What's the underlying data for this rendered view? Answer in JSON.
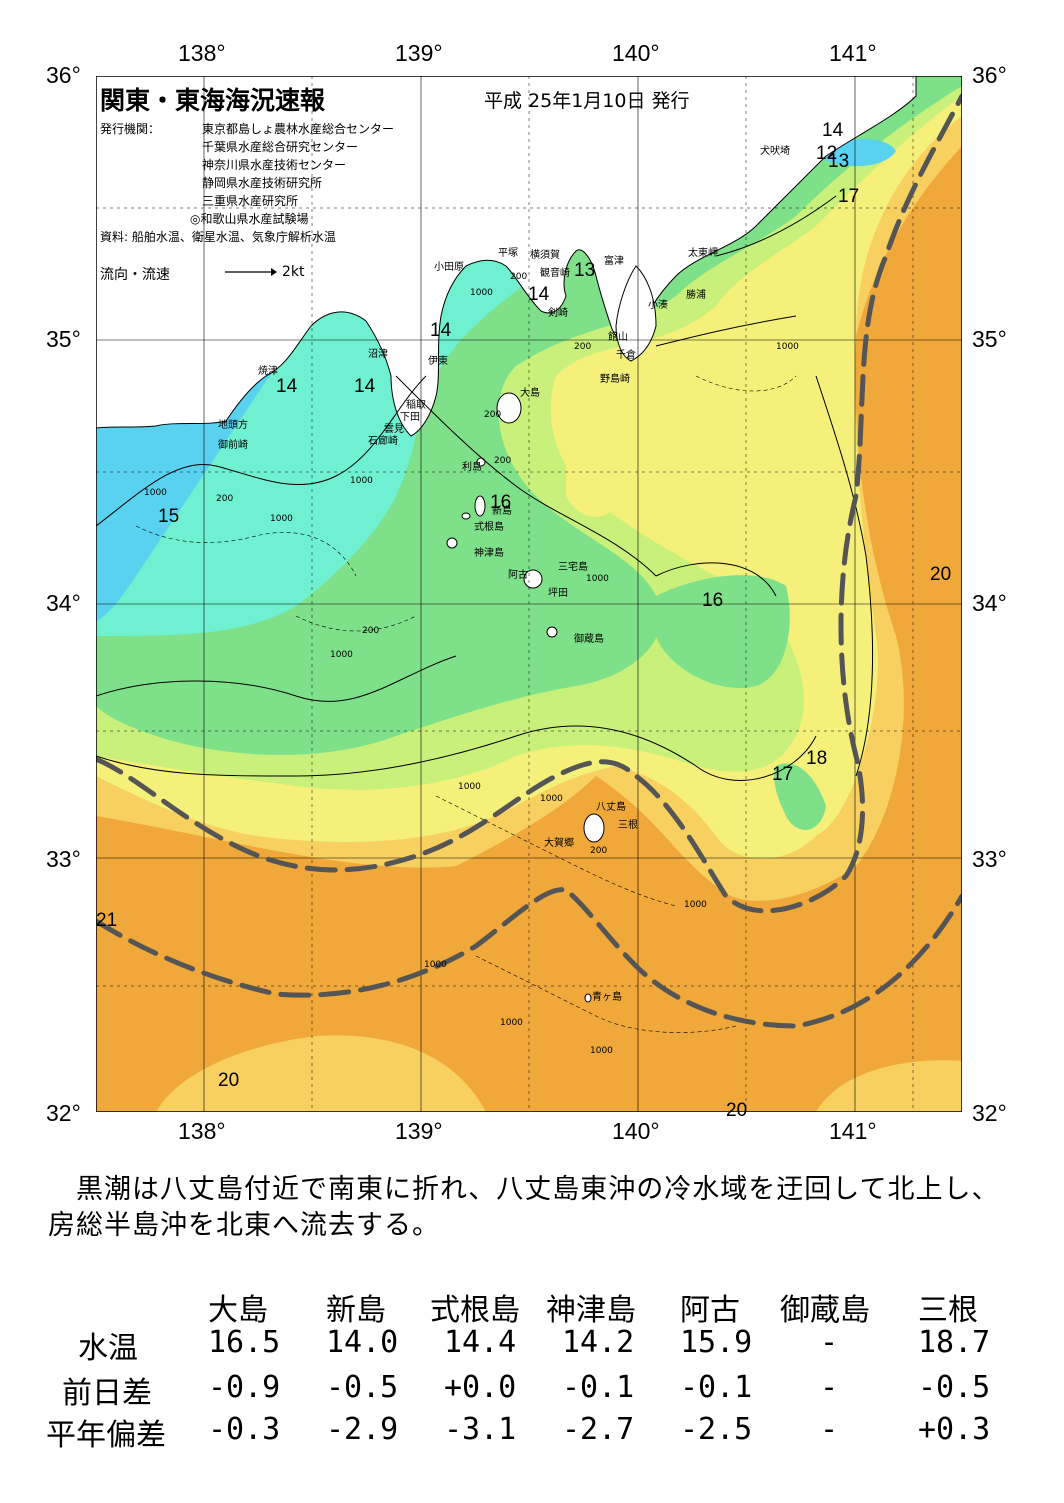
{
  "title": "関東・東海海況速報",
  "issued": "平成 25年1月10日 発行",
  "issuers_label": "発行機関：",
  "issuers": [
    "東京都島しょ農林水産総合センター",
    "千葉県水産総合研究センター",
    "神奈川県水産技術センター",
    "静岡県水産技術研究所",
    "三重県水産研究所",
    "◎和歌山県水産試験場"
  ],
  "sources": "資料: 船舶水温、衛星水温、気象庁解析水温",
  "flow_label": "流向・流速",
  "flow_scale": "2kt",
  "lon_labels": [
    "138°",
    "139°",
    "140°",
    "141°"
  ],
  "lat_labels": [
    "36°",
    "35°",
    "34°",
    "33°",
    "32°"
  ],
  "place_names": [
    "焼津",
    "沼津",
    "地頭方",
    "御前崎",
    "小田原",
    "平塚",
    "横須賀",
    "観音崎",
    "富津",
    "剣崎",
    "伊東",
    "稲取",
    "下田",
    "雲見",
    "石廊崎",
    "大島",
    "利島",
    "新島",
    "式根島",
    "神津島",
    "三宅島",
    "阿古",
    "坪田",
    "御蔵島",
    "八丈島",
    "三根",
    "大賀郷",
    "青ヶ島",
    "館山",
    "千倉",
    "野島崎",
    "小湊",
    "勝浦",
    "太東岬",
    "犬吠埼"
  ],
  "temperature_labels": [
    "14",
    "12",
    "13",
    "17",
    "13",
    "14",
    "14",
    "14",
    "14",
    "15",
    "16",
    "16",
    "20",
    "18",
    "17",
    "21",
    "20",
    "20"
  ],
  "depth_labels": [
    "1000",
    "200",
    "1000",
    "200",
    "1000",
    "200",
    "1000",
    "200",
    "1000",
    "1000",
    "200",
    "1000",
    "1000",
    "200",
    "1000",
    "200",
    "1000",
    "1000",
    "1000",
    "1000"
  ],
  "colors": {
    "cold": "#59d2f0",
    "cool": "#6ff0d0",
    "green": "#7fe08a",
    "yellowgreen": "#c8f07a",
    "yellow": "#f5f07a",
    "lightorange": "#f8d060",
    "orange": "#f0a83a",
    "kuroshio": "#555555"
  },
  "summary": "　黒潮は八丈島付近で南東に折れ、八丈島東沖の冷水域を迂回して北上し、房総半島沖を北東へ流去する。",
  "table": {
    "stations": [
      "大島",
      "新島",
      "式根島",
      "神津島",
      "阿古",
      "御蔵島",
      "三根"
    ],
    "rows": [
      {
        "label": "水温",
        "values": [
          "16.5",
          "14.0",
          "14.4",
          "14.2",
          "15.9",
          "-",
          "18.7"
        ]
      },
      {
        "label": "前日差",
        "values": [
          "-0.9",
          "-0.5",
          "+0.0",
          "-0.1",
          "-0.1",
          "-",
          "-0.5"
        ]
      },
      {
        "label": "平年偏差",
        "values": [
          "-0.3",
          "-2.9",
          "-3.1",
          "-2.7",
          "-2.5",
          "-",
          "+0.3"
        ]
      }
    ]
  }
}
